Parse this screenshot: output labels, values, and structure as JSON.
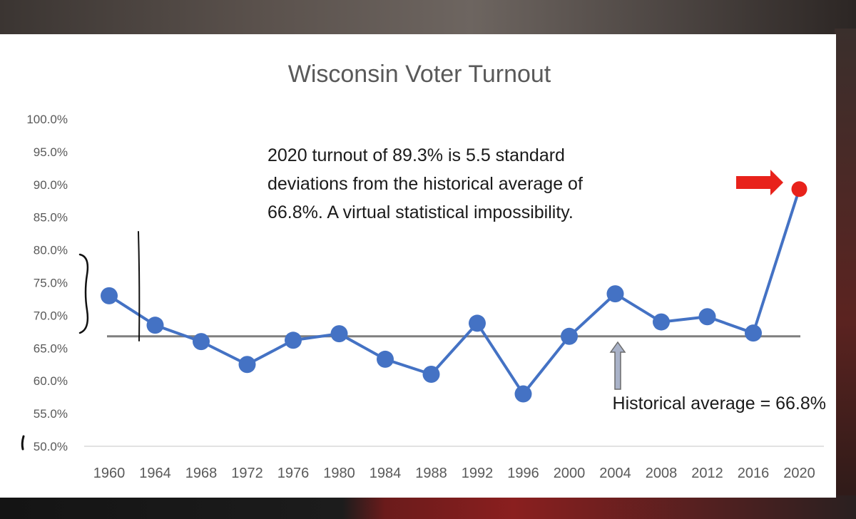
{
  "chart_data": {
    "type": "line",
    "title": "Wisconsin Voter Turnout",
    "xlabel": "",
    "ylabel": "",
    "categories": [
      "1960",
      "1964",
      "1968",
      "1972",
      "1976",
      "1980",
      "1984",
      "1988",
      "1992",
      "1996",
      "2000",
      "2004",
      "2008",
      "2012",
      "2016",
      "2020"
    ],
    "series": [
      {
        "name": "",
        "values": [
          73.0,
          68.5,
          66.0,
          62.5,
          66.2,
          67.2,
          63.3,
          61.0,
          68.8,
          58.0,
          66.8,
          73.3,
          69.0,
          69.8,
          67.3,
          89.3
        ]
      }
    ],
    "ylim": [
      50,
      100
    ],
    "y_ticks": [
      "100.0%",
      "95.0%",
      "90.0%",
      "85.0%",
      "80.0%",
      "75.0%",
      "70.0%",
      "65.0%",
      "60.0%",
      "55.0%",
      "50.0%"
    ],
    "reference_line": {
      "value": 66.8
    },
    "annotation_lines": [
      "2020  turnout of 89.3% is 5.5 standard",
      "deviations from the historical average of",
      "66.8%. A virtual statistical impossibility."
    ],
    "average_label": "Historical average = 66.8%",
    "grid": false,
    "legend": "none",
    "colors": {
      "line": "#4472c4",
      "highlight": "#e8221b",
      "average_line": "#7f7f7f",
      "up_arrow": "#a9b2c8",
      "right_arrow": "#e8221b",
      "text": "#404040",
      "tick_text": "#595959"
    }
  }
}
